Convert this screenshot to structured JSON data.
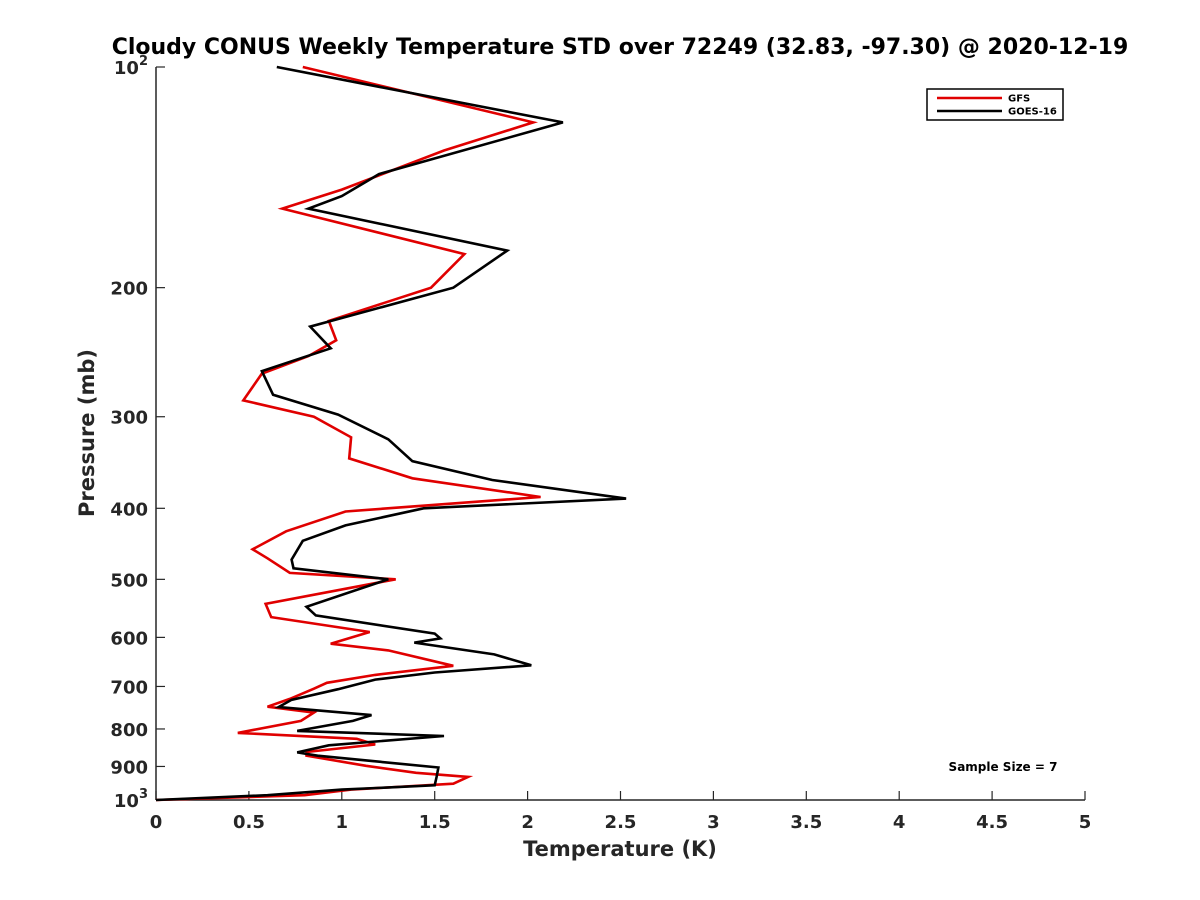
{
  "chart_data": {
    "type": "line",
    "title": "Cloudy CONUS Weekly Temperature STD over 72249 (32.83, -97.30) @ 2020-12-19",
    "xlabel": "Temperature (K)",
    "ylabel": "Pressure (mb)",
    "xlim": [
      0,
      5
    ],
    "ylim": [
      100,
      1000
    ],
    "yscale": "log",
    "y_reversed": true,
    "xticks": [
      0,
      0.5,
      1,
      1.5,
      2,
      2.5,
      3,
      3.5,
      4,
      4.5,
      5
    ],
    "xtick_labels": [
      "0",
      "0.5",
      "1",
      "1.5",
      "2",
      "2.5",
      "3",
      "3.5",
      "4",
      "4.5",
      "5"
    ],
    "yticks": [
      {
        "value": 100,
        "base": "10",
        "exp": "2"
      },
      {
        "value": 200,
        "label": "200"
      },
      {
        "value": 300,
        "label": "300"
      },
      {
        "value": 400,
        "label": "400"
      },
      {
        "value": 500,
        "label": "500"
      },
      {
        "value": 600,
        "label": "600"
      },
      {
        "value": 700,
        "label": "700"
      },
      {
        "value": 800,
        "label": "800"
      },
      {
        "value": 900,
        "label": "900"
      },
      {
        "value": 1000,
        "base": "10",
        "exp": "3"
      }
    ],
    "grid": false,
    "legend_position": "top-right",
    "annotation": "Sample Size = 7",
    "series": [
      {
        "name": "GFS",
        "color": "#e00000",
        "points": [
          [
            0.79,
            100
          ],
          [
            2.03,
            119
          ],
          [
            1.55,
            130
          ],
          [
            1.0,
            147
          ],
          [
            0.68,
            156
          ],
          [
            1.66,
            180
          ],
          [
            1.48,
            200
          ],
          [
            0.93,
            222
          ],
          [
            0.97,
            236
          ],
          [
            0.82,
            248
          ],
          [
            0.57,
            262
          ],
          [
            0.47,
            285
          ],
          [
            0.85,
            300
          ],
          [
            1.05,
            320
          ],
          [
            1.04,
            342
          ],
          [
            1.38,
            364
          ],
          [
            2.07,
            386
          ],
          [
            1.02,
            404
          ],
          [
            0.7,
            430
          ],
          [
            0.52,
            455
          ],
          [
            0.6,
            468
          ],
          [
            0.72,
            490
          ],
          [
            1.29,
            500
          ],
          [
            0.59,
            540
          ],
          [
            0.62,
            563
          ],
          [
            1.15,
            590
          ],
          [
            0.94,
            612
          ],
          [
            1.25,
            625
          ],
          [
            1.6,
            656
          ],
          [
            1.18,
            675
          ],
          [
            0.92,
            692
          ],
          [
            0.85,
            705
          ],
          [
            0.72,
            728
          ],
          [
            0.6,
            746
          ],
          [
            0.85,
            760
          ],
          [
            0.78,
            780
          ],
          [
            0.44,
            810
          ],
          [
            1.08,
            825
          ],
          [
            1.18,
            840
          ],
          [
            0.81,
            860
          ],
          [
            0.81,
            870
          ],
          [
            1.13,
            898
          ],
          [
            1.4,
            918
          ],
          [
            1.68,
            930
          ],
          [
            1.6,
            950
          ],
          [
            1.05,
            968
          ],
          [
            0.8,
            985
          ],
          [
            0.0,
            1000
          ]
        ]
      },
      {
        "name": "GOES-16",
        "color": "#000000",
        "points": [
          [
            0.65,
            100
          ],
          [
            2.19,
            119
          ],
          [
            1.2,
            140
          ],
          [
            1.0,
            150
          ],
          [
            0.82,
            156
          ],
          [
            1.89,
            178
          ],
          [
            1.6,
            200
          ],
          [
            0.83,
            226
          ],
          [
            0.94,
            242
          ],
          [
            0.57,
            260
          ],
          [
            0.63,
            280
          ],
          [
            0.98,
            298
          ],
          [
            1.25,
            322
          ],
          [
            1.38,
            345
          ],
          [
            1.81,
            366
          ],
          [
            2.53,
            388
          ],
          [
            1.44,
            400
          ],
          [
            1.02,
            422
          ],
          [
            0.79,
            443
          ],
          [
            0.73,
            470
          ],
          [
            0.74,
            483
          ],
          [
            1.25,
            500
          ],
          [
            0.81,
            545
          ],
          [
            0.86,
            560
          ],
          [
            1.5,
            593
          ],
          [
            1.53,
            602
          ],
          [
            1.39,
            610
          ],
          [
            1.82,
            633
          ],
          [
            2.02,
            655
          ],
          [
            1.5,
            670
          ],
          [
            1.18,
            685
          ],
          [
            0.98,
            706
          ],
          [
            0.73,
            730
          ],
          [
            0.66,
            747
          ],
          [
            1.16,
            766
          ],
          [
            1.06,
            780
          ],
          [
            0.76,
            805
          ],
          [
            1.55,
            818
          ],
          [
            0.93,
            842
          ],
          [
            0.76,
            861
          ],
          [
            0.87,
            870
          ],
          [
            1.52,
            903
          ],
          [
            1.51,
            930
          ],
          [
            1.5,
            955
          ],
          [
            1.0,
            968
          ],
          [
            0.6,
            985
          ],
          [
            0.0,
            1000
          ]
        ]
      }
    ]
  }
}
